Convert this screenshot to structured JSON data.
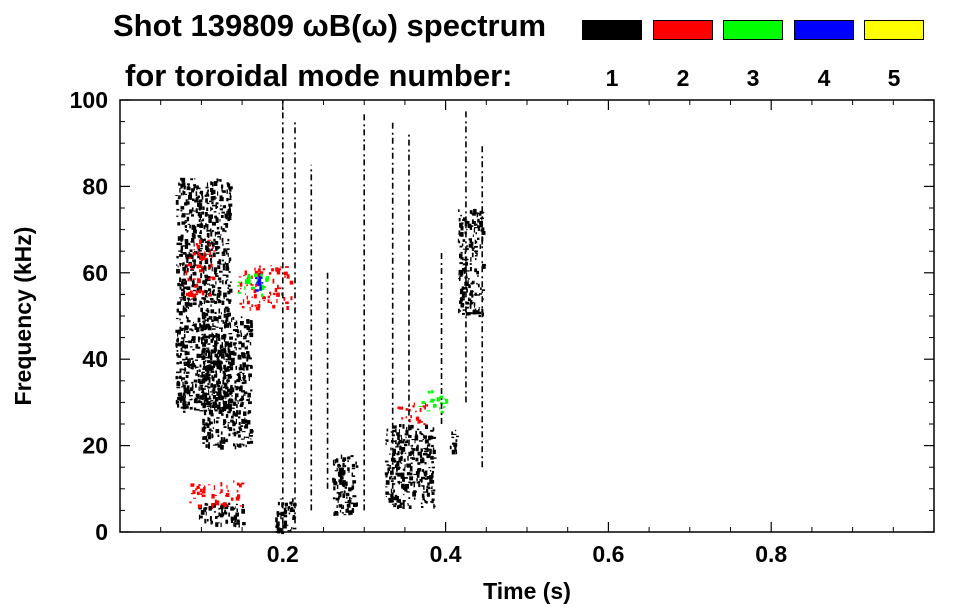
{
  "chart_data": {
    "type": "spectrogram",
    "title_line1": "Shot 139809 ωB(ω) spectrum",
    "title_line2": "for toroidal mode number:",
    "xlabel": "Time (s)",
    "ylabel": "Frequency (kHz)",
    "xlim": [
      0.0,
      1.0
    ],
    "ylim": [
      0,
      100
    ],
    "x_ticks": [
      {
        "value": 0.2,
        "label": "0.2"
      },
      {
        "value": 0.4,
        "label": "0.4"
      },
      {
        "value": 0.6,
        "label": "0.6"
      },
      {
        "value": 0.8,
        "label": "0.8"
      }
    ],
    "y_ticks": [
      {
        "value": 0,
        "label": "0"
      },
      {
        "value": 20,
        "label": "20"
      },
      {
        "value": 40,
        "label": "40"
      },
      {
        "value": 60,
        "label": "60"
      },
      {
        "value": 80,
        "label": "80"
      },
      {
        "value": 100,
        "label": "100"
      }
    ],
    "legend": [
      {
        "mode": "1",
        "color": "#000000"
      },
      {
        "mode": "2",
        "color": "#ff0000"
      },
      {
        "mode": "3",
        "color": "#00ff00"
      },
      {
        "mode": "4",
        "color": "#0000ff"
      },
      {
        "mode": "5",
        "color": "#ffff00"
      }
    ],
    "regions": [
      {
        "mode": 1,
        "t": [
          0.068,
          0.135
        ],
        "f": [
          28,
          82
        ]
      },
      {
        "mode": 1,
        "t": [
          0.1,
          0.16
        ],
        "f": [
          20,
          50
        ]
      },
      {
        "mode": 1,
        "t": [
          0.095,
          0.15
        ],
        "f": [
          2,
          7
        ]
      },
      {
        "mode": 1,
        "t": [
          0.19,
          0.215
        ],
        "f": [
          0,
          8
        ]
      },
      {
        "mode": 1,
        "t": [
          0.26,
          0.29
        ],
        "f": [
          4,
          18
        ]
      },
      {
        "mode": 1,
        "t": [
          0.325,
          0.385
        ],
        "f": [
          6,
          25
        ]
      },
      {
        "mode": 1,
        "t": [
          0.405,
          0.415
        ],
        "f": [
          18,
          24
        ]
      },
      {
        "mode": 1,
        "t": [
          0.415,
          0.445
        ],
        "f": [
          50,
          75
        ]
      },
      {
        "mode": 2,
        "t": [
          0.08,
          0.115
        ],
        "f": [
          55,
          68
        ]
      },
      {
        "mode": 2,
        "t": [
          0.145,
          0.21
        ],
        "f": [
          52,
          62
        ]
      },
      {
        "mode": 2,
        "t": [
          0.085,
          0.15
        ],
        "f": [
          6,
          12
        ]
      },
      {
        "mode": 2,
        "t": [
          0.34,
          0.38
        ],
        "f": [
          25,
          30
        ]
      },
      {
        "mode": 3,
        "t": [
          0.14,
          0.18
        ],
        "f": [
          55,
          60
        ]
      },
      {
        "mode": 3,
        "t": [
          0.365,
          0.4
        ],
        "f": [
          28,
          33
        ]
      },
      {
        "mode": 4,
        "t": [
          0.165,
          0.175
        ],
        "f": [
          56,
          60
        ]
      }
    ],
    "vertical_streaks": [
      {
        "t": 0.2,
        "f": [
          2,
          100
        ]
      },
      {
        "t": 0.215,
        "f": [
          2,
          95
        ]
      },
      {
        "t": 0.235,
        "f": [
          5,
          85
        ]
      },
      {
        "t": 0.255,
        "f": [
          10,
          60
        ]
      },
      {
        "t": 0.3,
        "f": [
          5,
          97
        ]
      },
      {
        "t": 0.335,
        "f": [
          10,
          95
        ]
      },
      {
        "t": 0.355,
        "f": [
          20,
          92
        ]
      },
      {
        "t": 0.395,
        "f": [
          25,
          65
        ]
      },
      {
        "t": 0.425,
        "f": [
          30,
          98
        ]
      },
      {
        "t": 0.445,
        "f": [
          15,
          90
        ]
      }
    ]
  }
}
